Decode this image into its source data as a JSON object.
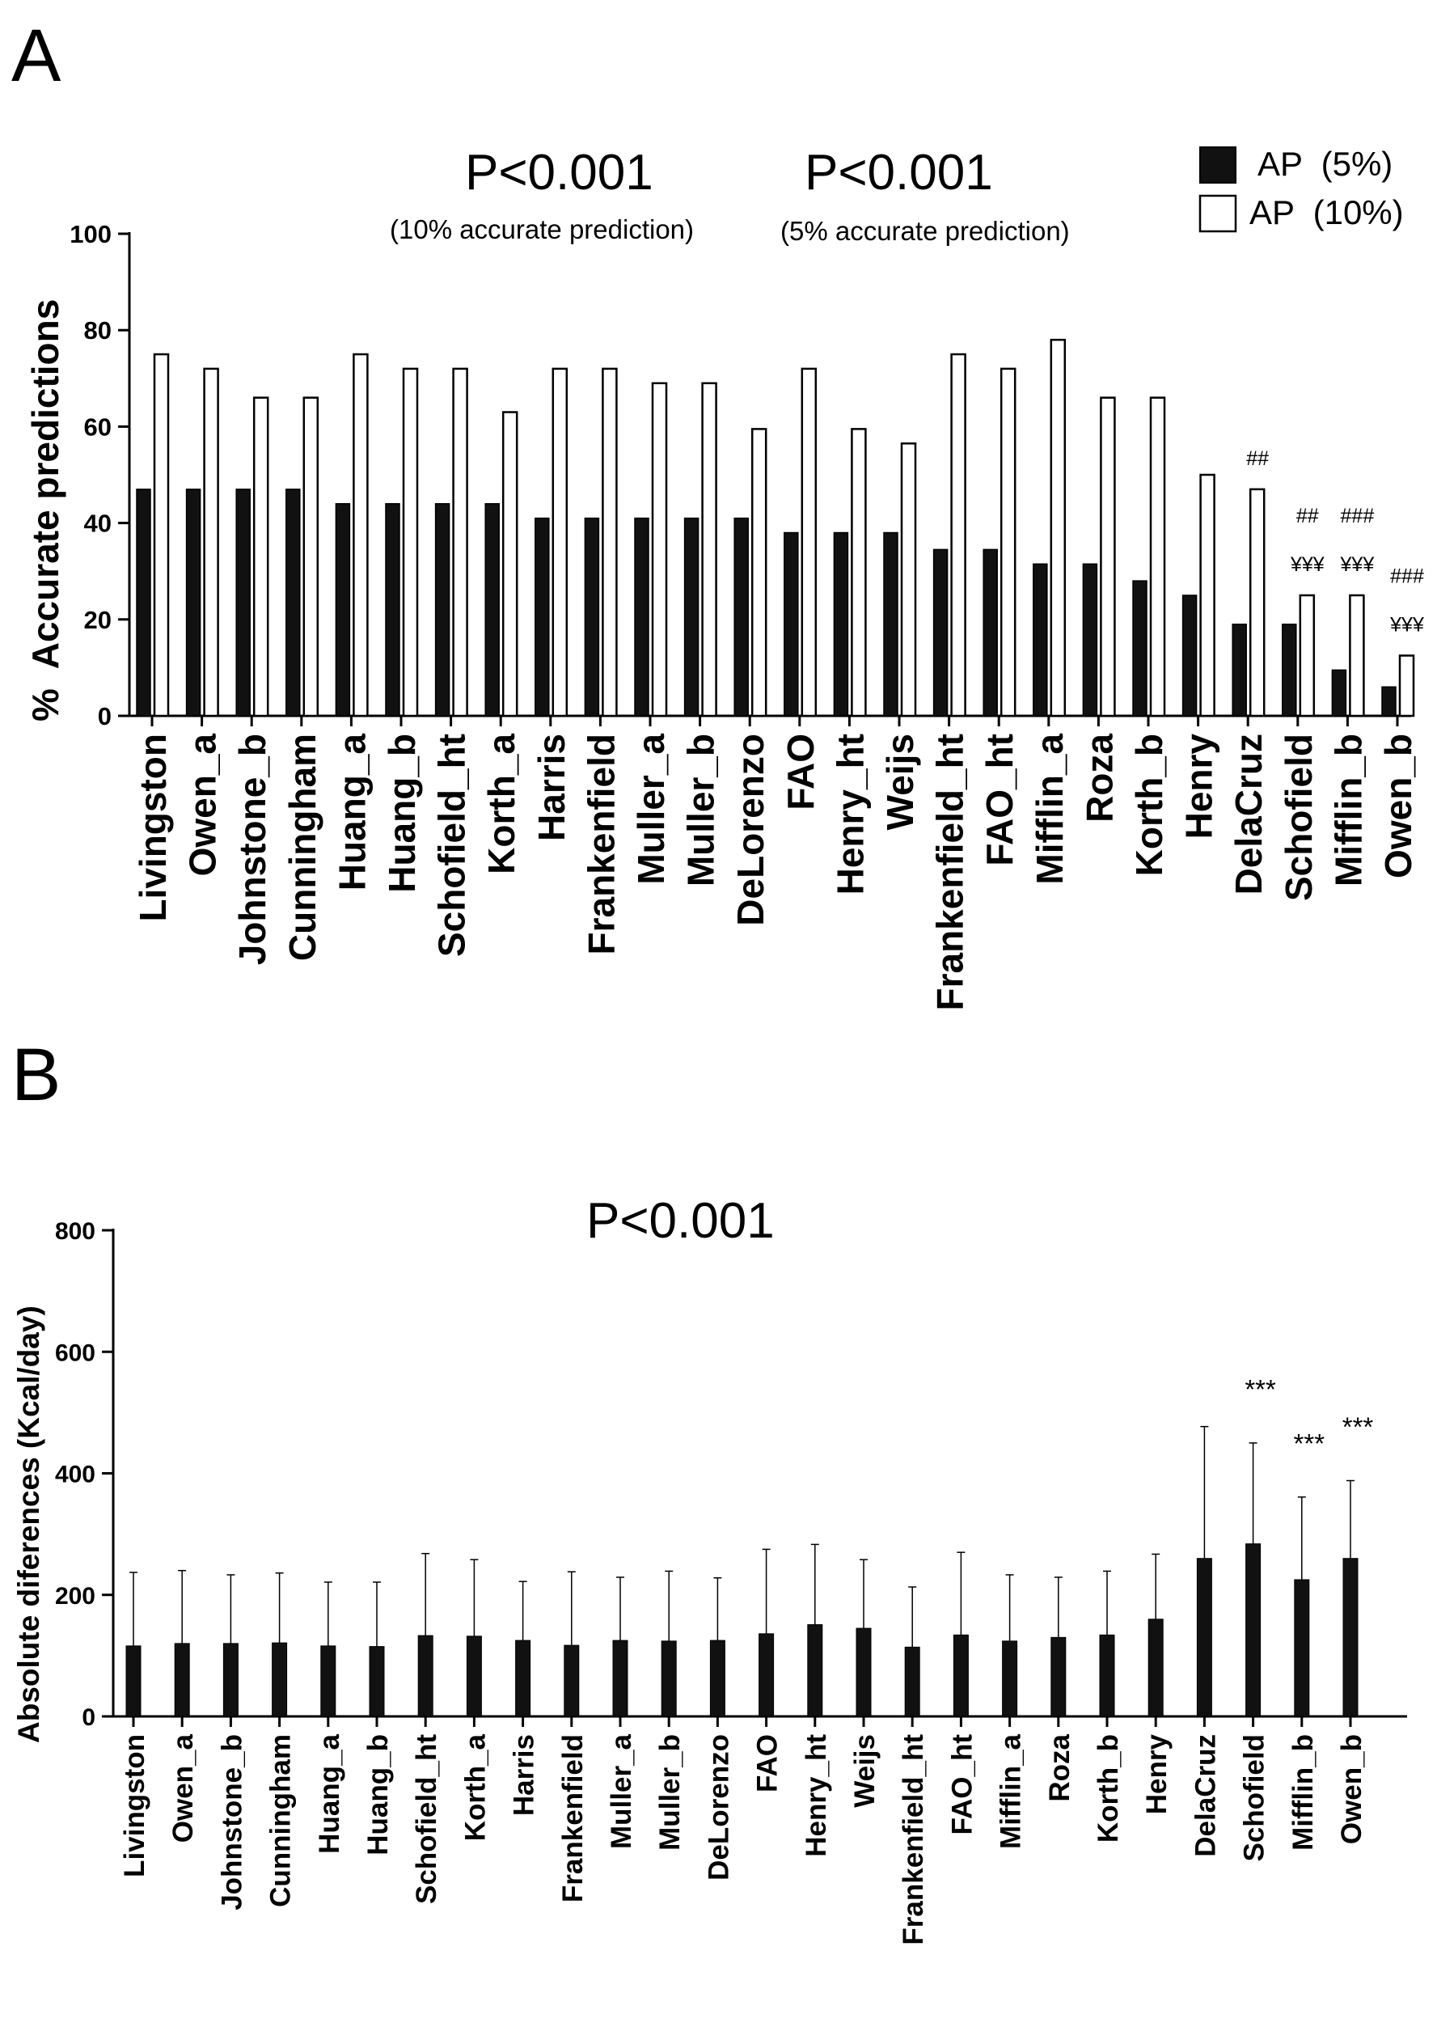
{
  "chart_data": [
    {
      "panel": "A",
      "type": "bar",
      "title_left": "P<0.001",
      "subtitle_left": "(10% accurate prediction)",
      "title_right": "P<0.001",
      "subtitle_right": "(5% accurate prediction)",
      "ylabel": "%  Accurate predictions",
      "xlabel": "",
      "ylim": [
        0,
        100
      ],
      "yticks": [
        0,
        20,
        40,
        60,
        80,
        100
      ],
      "legend_position": "top-right",
      "categories": [
        "Livingston",
        "Owen_a",
        "Johnstone_b",
        "Cunningham",
        "Huang_a",
        "Huang_b",
        "Schofield_ht",
        "Korth_a",
        "Harris",
        "Frankenfield",
        "Muller_a",
        "Muller_b",
        "DeLorenzo",
        "FAO",
        "Henry_ht",
        "Weijs",
        "Frankenfield_ht",
        "FAO_ht",
        "Mifflin_a",
        "Roza",
        "Korth_b",
        "Henry",
        "DelaCruz",
        "Schofield",
        "Mifflin_b",
        "Owen_b"
      ],
      "series": [
        {
          "name": "AP  (5%)",
          "fill": "#111111",
          "values": [
            47,
            47,
            47,
            47,
            44,
            44,
            44,
            44,
            41,
            41,
            41,
            41,
            41,
            38,
            38,
            38,
            34.5,
            34.5,
            31.5,
            31.5,
            28,
            25,
            19,
            19,
            9.5,
            6
          ]
        },
        {
          "name": "AP  (10%)",
          "fill": "#ffffff",
          "values": [
            75,
            72,
            66,
            66,
            75,
            72,
            72,
            63,
            72,
            72,
            69,
            69,
            59.5,
            72,
            59.5,
            56.5,
            75,
            72,
            78,
            66,
            66,
            50,
            47,
            25,
            25,
            12.5
          ]
        }
      ],
      "annotations": [
        {
          "category": "DelaCruz",
          "rows": [
            "##"
          ]
        },
        {
          "category": "Schofield",
          "rows": [
            "##",
            "¥¥¥"
          ]
        },
        {
          "category": "Mifflin_b",
          "rows": [
            "###",
            "¥¥¥"
          ]
        },
        {
          "category": "Owen_b",
          "rows": [
            "###",
            "¥¥¥"
          ]
        }
      ]
    },
    {
      "panel": "B",
      "type": "bar",
      "title": "P<0.001",
      "ylabel": "Absolute diferences (Kcal/day)",
      "xlabel": "",
      "ylim": [
        0,
        800
      ],
      "yticks": [
        0,
        200,
        400,
        600,
        800
      ],
      "categories": [
        "Livingston",
        "Owen_a",
        "Johnstone_b",
        "Cunningham",
        "Huang_a",
        "Huang_b",
        "Schofield_ht",
        "Korth_a",
        "Harris",
        "Frankenfield",
        "Muller_a",
        "Muller_b",
        "DeLorenzo",
        "FAO",
        "Henry_ht",
        "Weijs",
        "Frankenfield_ht",
        "FAO_ht",
        "Mifflin_a",
        "Roza",
        "Korth_b",
        "Henry",
        "DelaCruz",
        "Schofield",
        "Mifflin_b",
        "Owen_b"
      ],
      "values": [
        116,
        120,
        120,
        121,
        116,
        115,
        133,
        132,
        125,
        117,
        125,
        124,
        125,
        136,
        151,
        145,
        114,
        134,
        124,
        130,
        134,
        160,
        260,
        284,
        225,
        260
      ],
      "errors": [
        121,
        120,
        113,
        115,
        105,
        106,
        135,
        126,
        97,
        121,
        104,
        115,
        103,
        139,
        132,
        113,
        99,
        136,
        109,
        99,
        105,
        107,
        217,
        166,
        136,
        128
      ],
      "significance": [
        {
          "category": "Schofield",
          "label": "***"
        },
        {
          "category": "Mifflin_b",
          "label": "***"
        },
        {
          "category": "Owen_b",
          "label": "***"
        }
      ]
    }
  ],
  "panels": {
    "a_letter": "A",
    "b_letter": "B"
  }
}
